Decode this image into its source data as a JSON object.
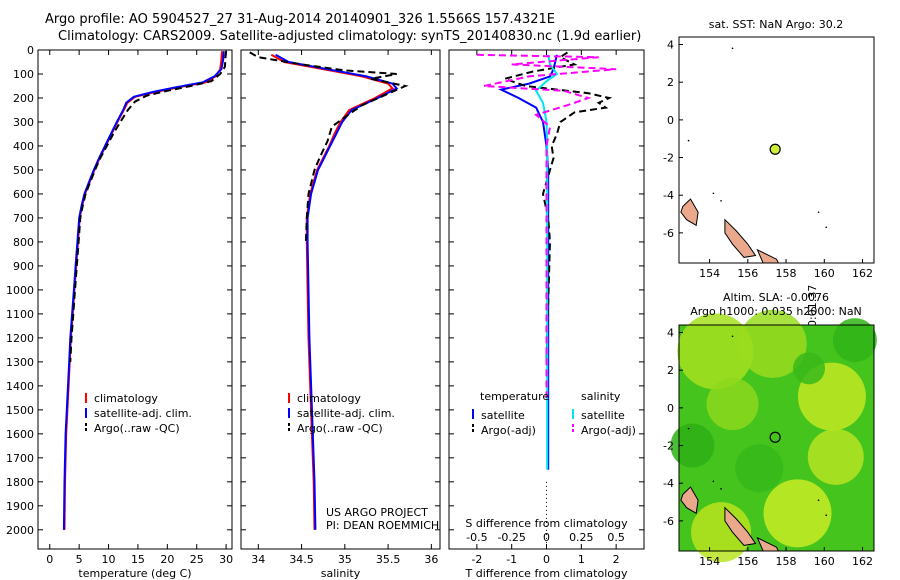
{
  "header": {
    "line1": "Argo profile: AO 5904527_27 31-Aug-2014 20140901_326 1.5566S 157.4321E",
    "line2": "Climatology: CARS2009. Satellite-adjusted climatology: synTS_20140830.nc (1.9d earlier)"
  },
  "side_label": "IMOS 07-Sep-2014 20:01:37",
  "chart_data": [
    {
      "id": "temperature",
      "type": "line",
      "xlabel": "temperature (deg C)",
      "xlim": [
        -2,
        31
      ],
      "xticks": [
        0,
        5,
        10,
        15,
        20,
        25,
        30
      ],
      "ylim": [
        0,
        2080
      ],
      "yticks": [
        0,
        100,
        200,
        300,
        400,
        500,
        600,
        700,
        800,
        900,
        1000,
        1100,
        1200,
        1300,
        1400,
        1500,
        1600,
        1700,
        1800,
        1900,
        2000
      ],
      "legend": {
        "position": "lower-left",
        "entries": [
          "climatology",
          "satellite-adj. clim.",
          "Argo(..raw -QC)"
        ]
      },
      "series": [
        {
          "name": "climatology",
          "color": "#ff0000",
          "dash": false,
          "x": [
            29.3,
            29.2,
            29.0,
            28.2,
            26.5,
            22,
            18,
            14.5,
            13.2,
            12.6,
            11.5,
            10.5,
            9.5,
            8.5,
            7.6,
            6.8,
            6.0,
            5.5,
            5.1,
            4.8,
            4.5,
            4.2,
            3.9,
            3.6,
            3.4,
            3.2,
            3.0,
            2.8,
            2.6,
            2.5
          ],
          "y": [
            5,
            40,
            80,
            110,
            135,
            155,
            175,
            195,
            220,
            250,
            300,
            350,
            400,
            450,
            500,
            550,
            600,
            650,
            700,
            800,
            900,
            1000,
            1100,
            1200,
            1300,
            1400,
            1500,
            1600,
            1800,
            2000
          ]
        },
        {
          "name": "satellite-adj. clim.",
          "color": "#0000ff",
          "dash": false,
          "x": [
            29.6,
            29.5,
            29.2,
            28.0,
            26.0,
            21.5,
            17.5,
            14.3,
            13.0,
            12.5,
            11.4,
            10.4,
            9.4,
            8.4,
            7.5,
            6.7,
            5.9,
            5.4,
            5.0,
            4.7,
            4.4,
            4.1,
            3.8,
            3.5,
            3.3,
            3.1,
            2.9,
            2.7,
            2.5,
            2.4
          ],
          "y": [
            5,
            40,
            80,
            110,
            135,
            155,
            175,
            195,
            220,
            250,
            300,
            350,
            400,
            450,
            500,
            550,
            600,
            650,
            700,
            800,
            900,
            1000,
            1100,
            1200,
            1300,
            1400,
            1500,
            1600,
            1800,
            2000
          ]
        },
        {
          "name": "Argo(..raw -QC)",
          "color": "#000000",
          "dash": true,
          "x": [
            30.0,
            29.9,
            29.8,
            29.0,
            27.5,
            24,
            20,
            16.5,
            14.5,
            13.3,
            12.0,
            10.8,
            9.7,
            8.6,
            7.7,
            6.9,
            6.1,
            5.6,
            5.2,
            4.9,
            4.6,
            4.3,
            4.0,
            3.7,
            3.5
          ],
          "y": [
            5,
            30,
            70,
            100,
            130,
            150,
            170,
            190,
            215,
            250,
            300,
            350,
            400,
            450,
            500,
            550,
            600,
            650,
            700,
            800,
            900,
            1000,
            1100,
            1200,
            1300
          ]
        }
      ]
    },
    {
      "id": "salinity",
      "type": "line",
      "xlabel": "salinity",
      "xlim": [
        33.8,
        36.1
      ],
      "xticks": [
        34,
        34.5,
        35,
        35.5,
        36
      ],
      "ylim": [
        0,
        2080
      ],
      "legend": {
        "position": "lower-left",
        "entries": [
          "climatology",
          "satellite-adj. clim.",
          "Argo(..raw -QC)"
        ]
      },
      "annotation": [
        "US ARGO PROJECT",
        "PI: DEAN ROEMMICH"
      ],
      "series": [
        {
          "name": "climatology",
          "color": "#ff0000",
          "dash": false,
          "x": [
            34.15,
            34.3,
            34.75,
            35.2,
            35.5,
            35.55,
            35.35,
            35.05,
            34.95,
            34.88,
            34.82,
            34.75,
            34.68,
            34.6,
            34.56,
            34.56,
            34.57,
            34.58,
            34.6,
            34.62,
            34.64,
            34.65
          ],
          "y": [
            20,
            50,
            80,
            110,
            140,
            160,
            200,
            250,
            300,
            350,
            400,
            450,
            500,
            600,
            700,
            800,
            1000,
            1200,
            1400,
            1600,
            1800,
            2000
          ]
        },
        {
          "name": "satellite-adj. clim.",
          "color": "#0000ff",
          "dash": false,
          "x": [
            34.2,
            34.35,
            34.8,
            35.25,
            35.55,
            35.6,
            35.38,
            35.08,
            34.97,
            34.9,
            34.83,
            34.76,
            34.69,
            34.61,
            34.57,
            34.57,
            34.58,
            34.59,
            34.61,
            34.63,
            34.65,
            34.66
          ],
          "y": [
            20,
            50,
            80,
            110,
            140,
            160,
            200,
            250,
            300,
            350,
            400,
            450,
            500,
            600,
            700,
            800,
            1000,
            1200,
            1400,
            1600,
            1800,
            2000
          ]
        },
        {
          "name": "Argo(..raw -QC)",
          "color": "#000000",
          "dash": true,
          "x": [
            33.9,
            34.0,
            34.5,
            35.0,
            35.6,
            35.3,
            35.7,
            35.2,
            35.0,
            34.85,
            34.8,
            34.72,
            34.65,
            34.58,
            34.56,
            34.55
          ],
          "y": [
            10,
            30,
            60,
            85,
            100,
            120,
            150,
            230,
            280,
            320,
            380,
            440,
            500,
            600,
            700,
            800
          ]
        }
      ]
    },
    {
      "id": "difference",
      "type": "line",
      "xlabel": "T difference from climatology",
      "xlabel2": "S difference from climatology",
      "xlim": [
        -2.8,
        2.8
      ],
      "xticks": [
        -2,
        -1,
        0,
        1,
        2
      ],
      "xticks2": [
        "-0.5",
        "-0.25",
        "0",
        "0.25",
        "0.5"
      ],
      "ylim": [
        0,
        2080
      ],
      "legend": {
        "position": "lower-center",
        "temperature_title": "temperature",
        "salinity_title": "salinity",
        "entries": [
          "satellite",
          "Argo(-adj)",
          "satellite",
          "Argo(-adj)"
        ]
      },
      "series": [
        {
          "name": "T satellite",
          "color": "#0000ff",
          "dash": false,
          "x": [
            0.3,
            0.2,
            0.1,
            -0.5,
            -1.3,
            -0.8,
            -0.3,
            -0.1,
            0,
            0.05,
            0.05,
            0.05,
            0.05,
            0.05,
            0.05
          ],
          "y": [
            20,
            80,
            110,
            140,
            165,
            200,
            240,
            300,
            400,
            500,
            600,
            800,
            1000,
            1400,
            1750
          ]
        },
        {
          "name": "T Argo(-adj)",
          "color": "#000000",
          "dash": true,
          "x": [
            0.6,
            0.4,
            0.8,
            -0.4,
            -1.2,
            -0.6,
            1.2,
            1.8,
            1.5,
            1.7,
            0.8,
            0.4,
            0.3,
            0.15,
            0.2,
            0.1,
            -0.1,
            0.05,
            0.1,
            0
          ],
          "y": [
            10,
            30,
            60,
            90,
            120,
            150,
            180,
            200,
            220,
            240,
            260,
            300,
            350,
            400,
            450,
            500,
            600,
            700,
            800,
            1300
          ]
        },
        {
          "name": "S satellite",
          "color": "#00e5ee",
          "dash": false,
          "x": [
            0.05,
            0.1,
            0.3,
            0.0,
            -0.3,
            -0.1,
            0,
            0.02,
            0.02,
            0.02,
            0.02
          ],
          "y": [
            20,
            60,
            100,
            130,
            170,
            220,
            300,
            400,
            800,
            1200,
            1750
          ]
        },
        {
          "name": "S Argo(-adj)",
          "color": "#ff00ff",
          "dash": true,
          "x": [
            -2.0,
            1.5,
            -1.0,
            2.0,
            -0.5,
            -1.8,
            0.5,
            1.2,
            0.6,
            -0.3,
            0.1,
            0,
            0
          ],
          "y": [
            20,
            30,
            60,
            80,
            110,
            150,
            170,
            200,
            230,
            270,
            320,
            400,
            1450
          ]
        }
      ]
    },
    {
      "id": "sst-map",
      "type": "scatter",
      "title": "sat. SST: NaN  Argo: 30.2",
      "xlim": [
        152.4,
        162.6
      ],
      "ylim": [
        -7.6,
        4.4
      ],
      "xticks": [
        154,
        156,
        158,
        160,
        162
      ],
      "yticks": [
        -6,
        -4,
        -2,
        0,
        2,
        4
      ],
      "points": [
        {
          "lon": 157.43,
          "lat": -1.56,
          "color": "#ccee33"
        }
      ]
    },
    {
      "id": "sla-map",
      "type": "heatmap",
      "title": "Altim. SLA: -0.0076",
      "subtitle": "Argo h1000: 0.035  h2000: NaN",
      "xlim": [
        152.4,
        162.6
      ],
      "ylim": [
        -7.6,
        4.4
      ],
      "xticks": [
        154,
        156,
        158,
        160,
        162
      ],
      "yticks": [
        -6,
        -4,
        -2,
        0,
        2,
        4
      ],
      "points": [
        {
          "lon": 157.43,
          "lat": -1.56
        }
      ]
    }
  ]
}
